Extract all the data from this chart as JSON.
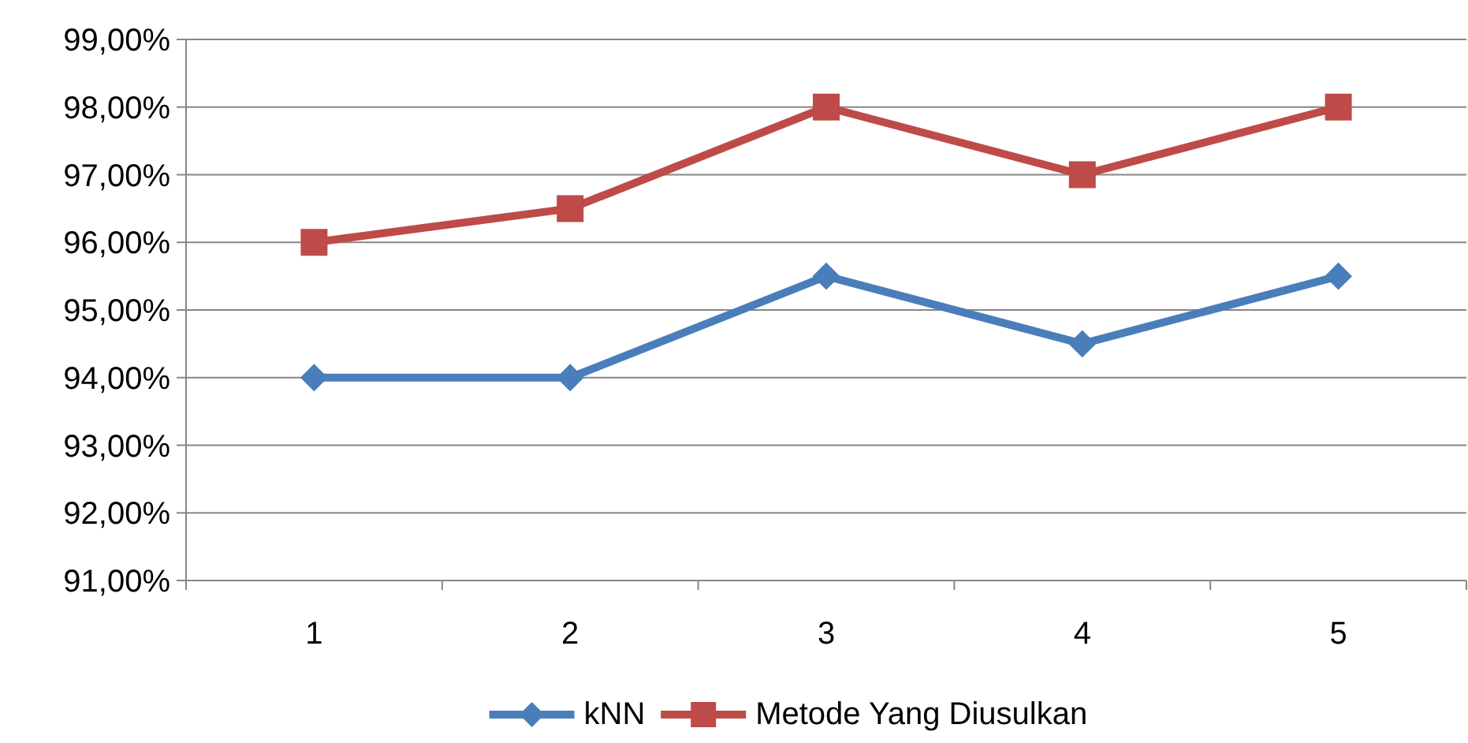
{
  "chart_data": {
    "type": "line",
    "categories": [
      "1",
      "2",
      "3",
      "4",
      "5"
    ],
    "series": [
      {
        "name": "kNN",
        "color": "#4a7ebb",
        "marker": "diamond",
        "values": [
          94,
          94,
          95.5,
          94.5,
          95.5
        ]
      },
      {
        "name": "Metode Yang Diusulkan",
        "color": "#be4b48",
        "marker": "square",
        "values": [
          96,
          96.5,
          98,
          97,
          98
        ]
      }
    ],
    "ylim": [
      91,
      99
    ],
    "yticks": [
      {
        "value": 91,
        "label": "91,00%"
      },
      {
        "value": 92,
        "label": "92,00%"
      },
      {
        "value": 93,
        "label": "93,00%"
      },
      {
        "value": 94,
        "label": "94,00%"
      },
      {
        "value": 95,
        "label": "95,00%"
      },
      {
        "value": 96,
        "label": "96,00%"
      },
      {
        "value": 97,
        "label": "97,00%"
      },
      {
        "value": 98,
        "label": "98,00%"
      },
      {
        "value": 99,
        "label": "99,00%"
      }
    ],
    "grid": "y",
    "legend": "bottom",
    "line_style": "solid"
  }
}
